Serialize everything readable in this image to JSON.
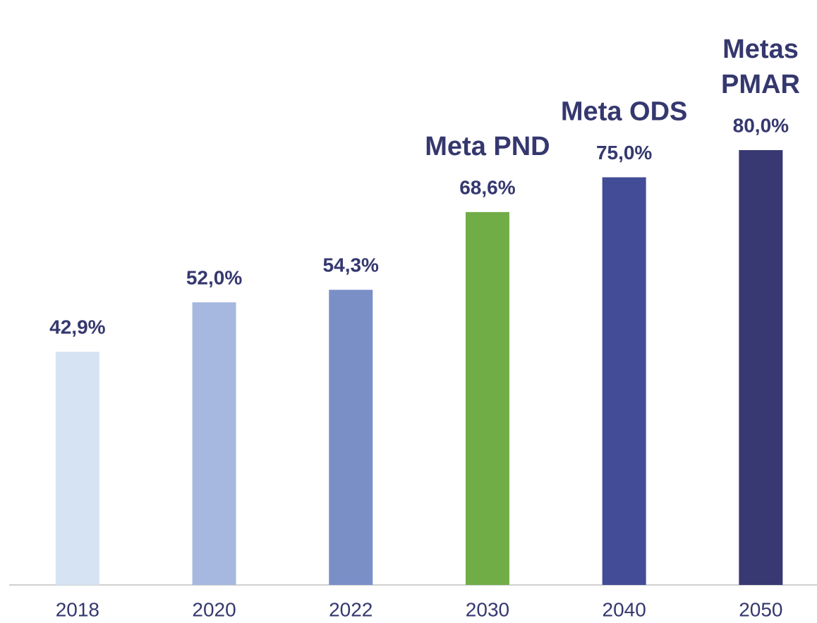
{
  "chart_data": {
    "type": "bar",
    "categories": [
      "2018",
      "2020",
      "2022",
      "2030",
      "2040",
      "2050"
    ],
    "values": [
      42.9,
      52.0,
      54.3,
      68.6,
      75.0,
      80.0
    ],
    "value_labels": [
      "42,9%",
      "52,0%",
      "54,3%",
      "68,6%",
      "75,0%",
      "80,0%"
    ],
    "colors": [
      "#d6e3f3",
      "#a6b8e0",
      "#7b8fc7",
      "#70ad47",
      "#434c96",
      "#383872"
    ],
    "annotations": [
      {
        "category": "2030",
        "lines": [
          "Meta PND"
        ]
      },
      {
        "category": "2040",
        "lines": [
          "Meta ODS"
        ]
      },
      {
        "category": "2050",
        "lines": [
          "Metas",
          "PMAR"
        ]
      }
    ]
  }
}
